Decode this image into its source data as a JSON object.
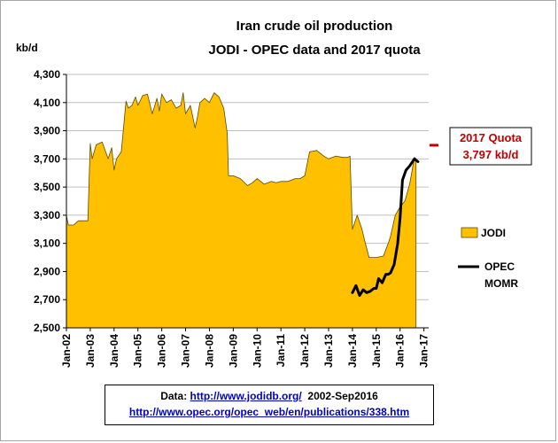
{
  "chart_data": {
    "type": "area",
    "title": [
      "Iran crude oil production",
      "JODI - OPEC data and 2017 quota"
    ],
    "ylabel": "kb/d",
    "ylim": [
      2500,
      4300
    ],
    "yticks": [
      2500,
      2700,
      2900,
      3100,
      3300,
      3500,
      3700,
      3900,
      4100,
      4300
    ],
    "ytick_labels": [
      "2,500",
      "2,700",
      "2,900",
      "3,100",
      "3,300",
      "3,500",
      "3,700",
      "3,900",
      "4,100",
      "4,300"
    ],
    "xticks": [
      "Jan-02",
      "Jan-03",
      "Jan-04",
      "Jan-05",
      "Jan-06",
      "Jan-07",
      "Jan-08",
      "Jan-09",
      "Jan-10",
      "Jan-11",
      "Jan-12",
      "Jan-13",
      "Jan-14",
      "Jan-15",
      "Jan-16",
      "Jan-17"
    ],
    "series": [
      {
        "name": "JODI",
        "style": "area",
        "color": "#ffc000",
        "x": [
          2002.0,
          2002.08,
          2002.3,
          2002.5,
          2002.55,
          2002.9,
          2003.0,
          2003.08,
          2003.25,
          2003.5,
          2003.75,
          2003.9,
          2004.0,
          2004.1,
          2004.3,
          2004.5,
          2004.6,
          2004.75,
          2004.9,
          2005.0,
          2005.2,
          2005.4,
          2005.6,
          2005.8,
          2005.9,
          2006.0,
          2006.2,
          2006.4,
          2006.6,
          2006.8,
          2006.9,
          2007.0,
          2007.2,
          2007.4,
          2007.5,
          2007.6,
          2007.8,
          2008.0,
          2008.2,
          2008.4,
          2008.6,
          2008.75,
          2008.8,
          2009.0,
          2009.3,
          2009.6,
          2009.8,
          2010.0,
          2010.3,
          2010.6,
          2010.8,
          2011.0,
          2011.3,
          2011.6,
          2011.8,
          2012.0,
          2012.2,
          2012.5,
          2012.8,
          2013.0,
          2013.3,
          2013.6,
          2013.8,
          2013.9,
          2014.0,
          2014.2,
          2014.4,
          2014.5,
          2014.7,
          2014.9,
          2015.0,
          2015.3,
          2015.5,
          2015.6,
          2015.8,
          2016.0,
          2016.2,
          2016.4,
          2016.6,
          2016.67
        ],
        "values": [
          3300,
          3230,
          3230,
          3260,
          3260,
          3260,
          3810,
          3700,
          3800,
          3820,
          3700,
          3780,
          3620,
          3700,
          3750,
          4110,
          4060,
          4080,
          4140,
          4080,
          4150,
          4160,
          4020,
          4130,
          4040,
          4160,
          4100,
          4120,
          4060,
          4080,
          4170,
          4020,
          4080,
          3920,
          4000,
          4100,
          4130,
          4100,
          4170,
          4140,
          4060,
          3880,
          3580,
          3580,
          3560,
          3510,
          3530,
          3560,
          3520,
          3540,
          3530,
          3540,
          3540,
          3560,
          3560,
          3580,
          3750,
          3760,
          3720,
          3700,
          3720,
          3710,
          3710,
          3720,
          3200,
          3300,
          3200,
          3130,
          3000,
          3000,
          3000,
          3010,
          3100,
          3150,
          3300,
          3360,
          3400,
          3520,
          3710,
          3700
        ]
      },
      {
        "name": "OPEC MOMR",
        "style": "line",
        "color": "#000000",
        "x": [
          2014.0,
          2014.15,
          2014.3,
          2014.45,
          2014.6,
          2014.75,
          2014.9,
          2015.0,
          2015.1,
          2015.25,
          2015.4,
          2015.5,
          2015.6,
          2015.75,
          2015.9,
          2016.0,
          2016.1,
          2016.25,
          2016.4,
          2016.6,
          2016.75
        ],
        "values": [
          2750,
          2800,
          2730,
          2770,
          2750,
          2760,
          2780,
          2780,
          2850,
          2820,
          2880,
          2880,
          2890,
          2950,
          3100,
          3280,
          3550,
          3620,
          3650,
          3700,
          3680
        ]
      }
    ],
    "annotation": {
      "label": [
        "2017 Quota",
        "3,797 kb/d"
      ],
      "value": 3797,
      "x": 2017.0,
      "color": "#c00000"
    },
    "legend_position": "right",
    "grid": "horizontal"
  },
  "source": {
    "prefix": "Data: ",
    "link1": "http://www.jodidb.org/",
    "suffix": "  2002-Sep2016",
    "link2": "http://www.opec.org/opec_web/en/publications/338.htm"
  },
  "colors": {
    "area": "#ffc000",
    "plot_bg": "#ffffff",
    "quota": "#c00000"
  }
}
